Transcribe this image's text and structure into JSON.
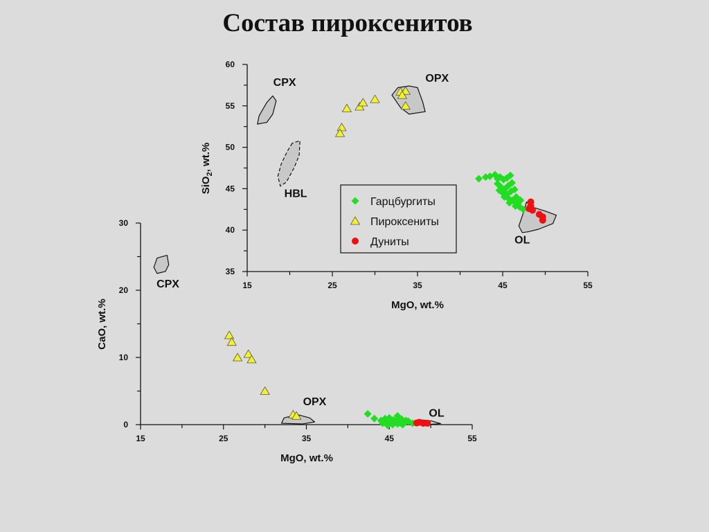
{
  "page": {
    "title": "Состав пироксенитов"
  },
  "colors": {
    "background": "#dcdcdc",
    "garzburgite": "#22dd22",
    "pyroxenite": "#f4f02a",
    "dunite": "#ee1111",
    "field_fill": "#c8c8c8"
  },
  "legend": {
    "placement": "inside, right of center of the SiO2 plot",
    "items": [
      {
        "label": "Гарцбургиты",
        "marker": "diamond",
        "color": "#22dd22"
      },
      {
        "label": "Пироксениты",
        "marker": "triangle",
        "color": "#f4f02a"
      },
      {
        "label": "Дуниты",
        "marker": "circle",
        "color": "#ee1111"
      }
    ]
  },
  "chart_data": [
    {
      "type": "scatter",
      "xlabel": "MgO, wt.%",
      "ylabel": "SiO2, wt.%",
      "xlim": [
        15,
        55
      ],
      "ylim": [
        35,
        60
      ],
      "xticks": [
        15,
        25,
        35,
        45,
        55
      ],
      "yticks": [
        35,
        40,
        45,
        50,
        55,
        60
      ],
      "grid": false,
      "field_labels": [
        {
          "text": "CPX",
          "x": 19.4,
          "y": 57.4
        },
        {
          "text": "OPX",
          "x": 37.3,
          "y": 57.9
        },
        {
          "text": "HBL",
          "x": 20.7,
          "y": 44.0
        },
        {
          "text": "OL",
          "x": 47.3,
          "y": 38.4
        }
      ],
      "fields": [
        {
          "name": "CPX",
          "style": "solid",
          "points": [
            [
              18.0,
              56.2
            ],
            [
              18.4,
              55.6
            ],
            [
              18.0,
              54.0
            ],
            [
              17.3,
              53.0
            ],
            [
              16.2,
              52.8
            ],
            [
              16.4,
              53.8
            ],
            [
              17.3,
              55.4
            ]
          ]
        },
        {
          "name": "HBL",
          "style": "dashed",
          "points": [
            [
              20.3,
              50.5
            ],
            [
              19.7,
              49.5
            ],
            [
              19.0,
              48.0
            ],
            [
              18.6,
              46.5
            ],
            [
              18.9,
              45.3
            ],
            [
              19.6,
              45.8
            ],
            [
              20.5,
              47.5
            ],
            [
              21.1,
              49.0
            ],
            [
              21.2,
              50.8
            ]
          ]
        },
        {
          "name": "OPX",
          "style": "solid",
          "points": [
            [
              35.0,
              57.2
            ],
            [
              35.6,
              55.5
            ],
            [
              35.9,
              54.3
            ],
            [
              34.0,
              54.0
            ],
            [
              33.0,
              54.8
            ],
            [
              32.0,
              56.3
            ],
            [
              32.7,
              57.2
            ],
            [
              34.0,
              57.4
            ]
          ]
        },
        {
          "name": "OL",
          "style": "solid",
          "points": [
            [
              47.8,
              43.4
            ],
            [
              48.4,
              42.8
            ],
            [
              50.0,
              42.3
            ],
            [
              51.3,
              41.8
            ],
            [
              50.9,
              40.8
            ],
            [
              49.2,
              40.1
            ],
            [
              48.0,
              39.8
            ],
            [
              47.3,
              39.7
            ],
            [
              46.9,
              40.5
            ],
            [
              47.4,
              42.0
            ]
          ]
        }
      ],
      "series": [
        {
          "name": "Гарцбургиты",
          "marker": "diamond",
          "points": [
            [
              42.2,
              46.2
            ],
            [
              43.0,
              46.4
            ],
            [
              43.5,
              46.5
            ],
            [
              44.1,
              46.7
            ],
            [
              44.4,
              46.2
            ],
            [
              44.7,
              46.4
            ],
            [
              45.1,
              46.1
            ],
            [
              45.5,
              46.3
            ],
            [
              45.9,
              46.6
            ],
            [
              44.4,
              45.6
            ],
            [
              44.8,
              45.2
            ],
            [
              45.3,
              45.0
            ],
            [
              45.7,
              45.4
            ],
            [
              46.1,
              45.7
            ],
            [
              44.6,
              44.8
            ],
            [
              45.0,
              44.5
            ],
            [
              45.5,
              44.3
            ],
            [
              46.0,
              44.7
            ],
            [
              46.4,
              44.9
            ],
            [
              45.2,
              44.0
            ],
            [
              45.7,
              43.8
            ],
            [
              46.1,
              43.6
            ],
            [
              46.6,
              44.0
            ],
            [
              45.8,
              43.3
            ],
            [
              46.3,
              43.5
            ],
            [
              46.8,
              43.2
            ],
            [
              47.1,
              43.6
            ],
            [
              46.5,
              42.9
            ],
            [
              47.0,
              42.8
            ],
            [
              47.4,
              42.5
            ]
          ]
        },
        {
          "name": "Пироксениты",
          "marker": "triangle",
          "points": [
            [
              26.1,
              52.4
            ],
            [
              25.9,
              51.7
            ],
            [
              26.7,
              54.7
            ],
            [
              28.2,
              54.9
            ],
            [
              28.6,
              55.4
            ],
            [
              30.0,
              55.8
            ],
            [
              33.0,
              56.7
            ],
            [
              33.6,
              56.8
            ],
            [
              33.2,
              56.3
            ],
            [
              33.6,
              55.0
            ]
          ]
        },
        {
          "name": "Дуниты",
          "marker": "circle",
          "points": [
            [
              48.3,
              43.4
            ],
            [
              48.3,
              42.9
            ],
            [
              48.1,
              42.6
            ],
            [
              48.5,
              42.4
            ],
            [
              49.3,
              41.9
            ],
            [
              49.7,
              41.6
            ],
            [
              49.7,
              41.2
            ]
          ]
        }
      ]
    },
    {
      "type": "scatter",
      "xlabel": "MgO, wt.%",
      "ylabel": "CaO, wt.%",
      "xlim": [
        15,
        55
      ],
      "ylim": [
        0,
        30
      ],
      "xticks": [
        15,
        25,
        35,
        45,
        55
      ],
      "yticks": [
        0,
        10,
        20,
        30
      ],
      "grid": false,
      "field_labels": [
        {
          "text": "CPX",
          "x": 18.3,
          "y": 20.4
        },
        {
          "text": "OPX",
          "x": 36.0,
          "y": 2.9
        },
        {
          "text": "OL",
          "x": 50.7,
          "y": 1.2
        }
      ],
      "fields": [
        {
          "name": "CPX",
          "style": "solid",
          "points": [
            [
              18.2,
              25.2
            ],
            [
              18.4,
              23.8
            ],
            [
              18.0,
              22.8
            ],
            [
              17.0,
              22.5
            ],
            [
              16.6,
              23.4
            ],
            [
              17.0,
              24.8
            ]
          ]
        },
        {
          "name": "OPX",
          "style": "solid",
          "points": [
            [
              33.9,
              1.5
            ],
            [
              35.4,
              1.0
            ],
            [
              36.0,
              0.4
            ],
            [
              34.5,
              0.1
            ],
            [
              32.0,
              0.2
            ],
            [
              32.3,
              1.0
            ]
          ]
        },
        {
          "name": "OL",
          "style": "solid",
          "points": [
            [
              48.5,
              0.75
            ],
            [
              50.1,
              0.55
            ],
            [
              51.2,
              0.15
            ],
            [
              49.0,
              -0.05
            ],
            [
              47.6,
              0.2
            ]
          ]
        }
      ],
      "series": [
        {
          "name": "Гарцбургиты",
          "marker": "diamond",
          "points": [
            [
              42.4,
              1.6
            ],
            [
              43.2,
              0.9
            ],
            [
              44.0,
              0.6
            ],
            [
              44.5,
              0.9
            ],
            [
              45.0,
              1.0
            ],
            [
              45.5,
              0.7
            ],
            [
              46.0,
              1.3
            ],
            [
              46.5,
              0.8
            ],
            [
              47.0,
              0.6
            ],
            [
              44.2,
              0.2
            ],
            [
              44.7,
              0.4
            ],
            [
              45.2,
              0.3
            ],
            [
              45.8,
              0.5
            ],
            [
              46.3,
              0.3
            ],
            [
              46.8,
              0.2
            ],
            [
              47.3,
              0.5
            ],
            [
              44.8,
              -0.1
            ],
            [
              45.4,
              0.0
            ],
            [
              46.0,
              0.1
            ],
            [
              46.6,
              0.0
            ],
            [
              47.8,
              0.2
            ]
          ]
        },
        {
          "name": "Пироксениты",
          "marker": "triangle",
          "points": [
            [
              25.7,
              13.3
            ],
            [
              26.0,
              12.3
            ],
            [
              26.7,
              10.0
            ],
            [
              28.0,
              10.5
            ],
            [
              28.4,
              9.7
            ],
            [
              30.0,
              5.0
            ],
            [
              33.4,
              1.5
            ],
            [
              33.8,
              1.3
            ]
          ]
        },
        {
          "name": "Дуниты",
          "marker": "circle",
          "points": [
            [
              48.3,
              0.25
            ],
            [
              48.6,
              0.35
            ],
            [
              49.1,
              0.2
            ],
            [
              49.6,
              0.2
            ]
          ]
        }
      ]
    }
  ]
}
